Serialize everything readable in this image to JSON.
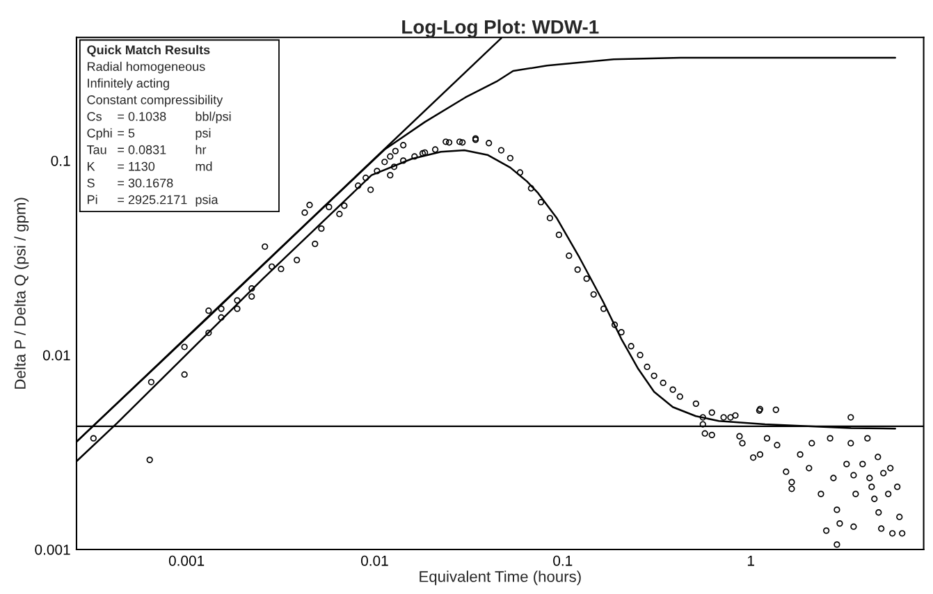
{
  "chart_data": {
    "type": "scatter",
    "title": "Log-Log Plot: WDW-1",
    "xlabel": "Equivalent Time (hours)",
    "ylabel": "Delta P / Delta Q (psi / gpm)",
    "log": "xy",
    "grid": false,
    "legend": false,
    "xlim": [
      0.00026,
      8.3
    ],
    "xticks": [
      0.001,
      0.01,
      0.1,
      1
    ],
    "ylim": [
      0.001,
      0.43
    ],
    "yticks": [
      0.001,
      0.01,
      0.1
    ],
    "ref_lines": [
      {
        "axis": "y",
        "value": 0.0043,
        "color": "#000000"
      }
    ],
    "annotations": [
      "Quick Match Results",
      "Radial homogeneous",
      "Infinitely acting",
      "Constant compressibility",
      "Cs = 0.1038 bbl/psi",
      "Cphi = 5 psi",
      "Tau = 0.0831 hr",
      "K = 1130 md",
      "S = 30.1678",
      "Pi = 2925.2171 psia"
    ],
    "series": [
      {
        "type": "line",
        "color": "#000000",
        "line_style": "solid",
        "x": [
          0.00026,
          0.0471
        ],
        "values": [
          0.00358,
          0.426
        ]
      },
      {
        "type": "line",
        "color": "#000000",
        "line_style": "solid",
        "x": [
          0.00026,
          0.00132,
          0.00474,
          0.0113,
          0.0185,
          0.0303,
          0.0445,
          0.0545,
          0.0826,
          0.187,
          0.423,
          5.86
        ],
        "values": [
          0.00358,
          0.0158,
          0.0514,
          0.114,
          0.158,
          0.211,
          0.255,
          0.289,
          0.308,
          0.332,
          0.338,
          0.338
        ]
      },
      {
        "type": "line",
        "color": "#000000",
        "line_style": "solid",
        "x": [
          0.00026,
          0.000428,
          0.00255,
          0.00962,
          0.0157,
          0.0225,
          0.03,
          0.0398,
          0.0526,
          0.0646,
          0.074,
          0.0931,
          0.123,
          0.164,
          0.205,
          0.252,
          0.306,
          0.385,
          0.51,
          0.676,
          1.19,
          3.41,
          5.86
        ],
        "values": [
          0.00284,
          0.00447,
          0.0247,
          0.0841,
          0.102,
          0.111,
          0.113,
          0.107,
          0.0921,
          0.0781,
          0.068,
          0.0505,
          0.0316,
          0.0188,
          0.0121,
          0.00849,
          0.00647,
          0.0054,
          0.00485,
          0.00458,
          0.0044,
          0.00421,
          0.00418
        ]
      },
      {
        "color": "#000000",
        "marker": "circle",
        "x": [
          0.00032,
          0.000637,
          0.000649,
          0.000975,
          0.000975,
          0.00131,
          0.00131,
          0.00153,
          0.00153,
          0.00186,
          0.00186,
          0.00222,
          0.00222,
          0.00261,
          0.00284,
          0.00318,
          0.00386,
          0.00425,
          0.00451,
          0.00482,
          0.00521,
          0.00572,
          0.0065,
          0.0069,
          0.00817,
          0.00897,
          0.00952,
          0.0103,
          0.0113,
          0.0121,
          0.0129,
          0.0142,
          0.0121,
          0.0127,
          0.0142,
          0.0163,
          0.0185,
          0.021,
          0.0249,
          0.0293,
          0.0344,
          0.0405,
          0.018,
          0.0239,
          0.0283,
          0.0344,
          0.0471,
          0.0526,
          0.0593,
          0.0679,
          0.0766,
          0.0855,
          0.0955,
          0.108,
          0.12,
          0.134,
          0.146,
          0.165,
          0.189,
          0.205,
          0.231,
          0.258,
          0.281,
          0.306,
          0.342,
          0.385,
          0.42,
          0.511,
          0.556,
          0.621,
          0.717,
          0.828,
          0.57,
          0.621,
          0.871,
          1.03,
          1.12,
          0.902,
          1.12,
          1.36,
          1.22,
          1.38,
          1.54,
          1.65,
          1.65,
          1.83,
          2.04,
          2.11,
          2.36,
          2.64,
          2.75,
          2.87,
          2.97,
          2.87,
          2.52,
          3.23,
          3.4,
          3.4,
          3.52,
          3.61,
          3.52,
          3.93,
          4.17,
          4.28,
          4.39,
          4.54,
          4.74,
          4.78,
          4.94,
          5.07,
          5.38,
          5.52,
          5.66,
          6.01,
          6.17,
          6.38,
          0.556,
          0.78,
          1.11
        ],
        "values": [
          0.00373,
          0.00289,
          0.00726,
          0.011,
          0.00794,
          0.0169,
          0.013,
          0.0173,
          0.0156,
          0.0191,
          0.0173,
          0.02,
          0.022,
          0.0361,
          0.0285,
          0.0277,
          0.0308,
          0.054,
          0.0591,
          0.0373,
          0.0447,
          0.0577,
          0.0531,
          0.0586,
          0.0743,
          0.0815,
          0.0708,
          0.0884,
          0.0984,
          0.105,
          0.112,
          0.12,
          0.0841,
          0.0929,
          0.1,
          0.105,
          0.11,
          0.114,
          0.124,
          0.124,
          0.128,
          0.123,
          0.109,
          0.125,
          0.125,
          0.13,
          0.113,
          0.103,
          0.0869,
          0.072,
          0.0611,
          0.0506,
          0.0415,
          0.0324,
          0.0275,
          0.0247,
          0.0205,
          0.0173,
          0.0143,
          0.0131,
          0.0111,
          0.01,
          0.00869,
          0.00782,
          0.00719,
          0.00664,
          0.00611,
          0.00562,
          0.00478,
          0.00506,
          0.00478,
          0.00489,
          0.00395,
          0.00388,
          0.00382,
          0.00297,
          0.00527,
          0.00352,
          0.00308,
          0.00523,
          0.00373,
          0.00344,
          0.00251,
          0.00222,
          0.00205,
          0.00308,
          0.00262,
          0.00352,
          0.00193,
          0.00373,
          0.00233,
          0.0016,
          0.00136,
          0.00106,
          0.00125,
          0.00275,
          0.00478,
          0.00352,
          0.00241,
          0.00193,
          0.00131,
          0.00275,
          0.00373,
          0.00233,
          0.0021,
          0.00182,
          0.00299,
          0.00155,
          0.00128,
          0.00247,
          0.00193,
          0.00262,
          0.00121,
          0.0021,
          0.00147,
          0.00121,
          0.0044,
          0.00478,
          0.00518
        ]
      }
    ]
  }
}
